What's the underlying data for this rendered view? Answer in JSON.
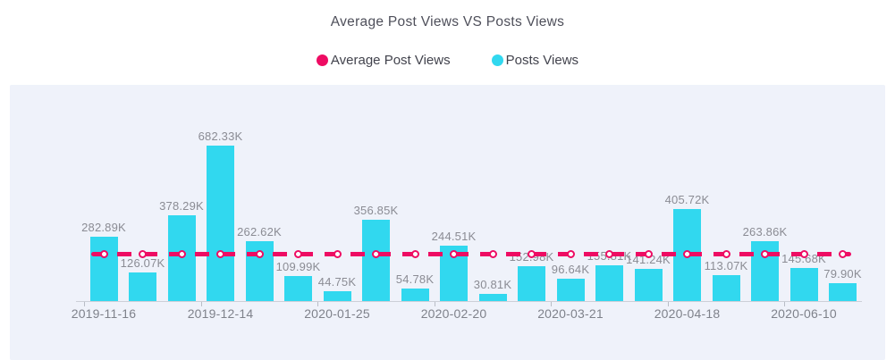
{
  "title": "Average Post Views VS Posts Views",
  "legend": [
    {
      "name": "Average Post Views",
      "color": "#ee0c63"
    },
    {
      "name": "Posts Views",
      "color": "#31d8ef"
    }
  ],
  "colors": {
    "bar": "#31d8ef",
    "average_line": "#ee0c63",
    "panel_background": "#eff2fa",
    "title_text": "#4e4f5a",
    "value_label_text": "#8b8c94",
    "axis_label_text": "#7f828b"
  },
  "chart_data": {
    "type": "bar",
    "title": "Average Post Views VS Posts Views",
    "legend_position": "top",
    "grid": false,
    "ylim": [
      0,
      730
    ],
    "x_tick_labels": [
      "2019-11-16",
      "2019-12-14",
      "2020-01-25",
      "2020-02-20",
      "2020-03-21",
      "2020-04-18",
      "2020-06-10"
    ],
    "x_label_interval": 3,
    "series": [
      {
        "name": "Posts Views",
        "type": "bar",
        "color": "#31d8ef",
        "values_k": [
          282.89,
          126.07,
          378.29,
          682.33,
          262.62,
          109.99,
          44.75,
          356.85,
          54.78,
          244.51,
          30.81,
          152.98,
          96.64,
          155.81,
          141.24,
          405.72,
          113.07,
          263.86,
          145.68,
          79.9
        ],
        "labels": [
          "282.89K",
          "126.07K",
          "378.29K",
          "682.33K",
          "262.62K",
          "109.99K",
          "44.75K",
          "356.85K",
          "54.78K",
          "244.51K",
          "30.81K",
          "152.98K",
          "96.64K",
          "155.81K",
          "141.24K",
          "405.72K",
          "113.07K",
          "263.86K",
          "145.68K",
          "79.90K"
        ]
      },
      {
        "name": "Average Post Views",
        "type": "line",
        "style": "dashed",
        "color": "#ee0c63",
        "estimated_value_k": 206.3
      }
    ]
  }
}
